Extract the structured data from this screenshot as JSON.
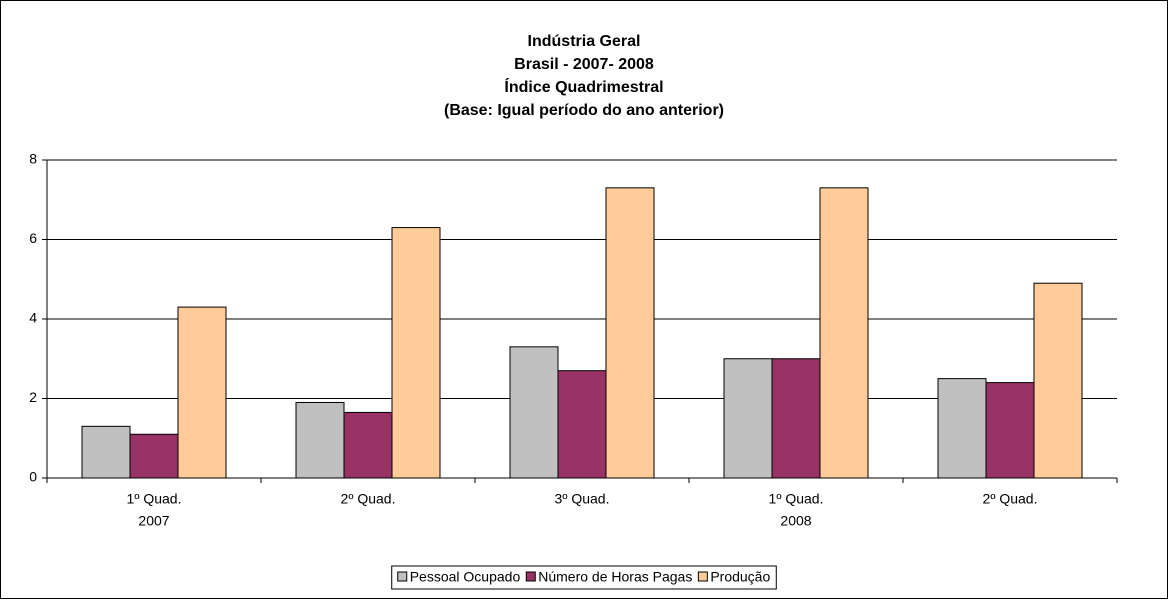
{
  "chart_data": {
    "type": "bar",
    "title": [
      "Indústria Geral",
      "Brasil - 2007- 2008",
      "Índice Quadrimestral",
      "(Base: Igual período do ano anterior)"
    ],
    "categories": [
      [
        "1º Quad.",
        "2007"
      ],
      [
        "2º Quad."
      ],
      [
        "3º Quad."
      ],
      [
        "1º Quad.",
        "2008"
      ],
      [
        "2º Quad."
      ]
    ],
    "series": [
      {
        "name": "Pessoal Ocupado",
        "color": "#c0c0c0",
        "values": [
          1.3,
          1.9,
          3.3,
          3.0,
          2.5
        ]
      },
      {
        "name": "Número de Horas Pagas",
        "color": "#993366",
        "values": [
          1.1,
          1.65,
          2.7,
          3.0,
          2.4
        ]
      },
      {
        "name": "Produção",
        "color": "#ffcc99",
        "values": [
          4.3,
          6.3,
          7.3,
          7.3,
          4.9
        ]
      }
    ],
    "ylim": [
      0,
      8
    ],
    "yticks": [
      0,
      2,
      4,
      6,
      8
    ],
    "grid": true,
    "legend": "bottom"
  }
}
